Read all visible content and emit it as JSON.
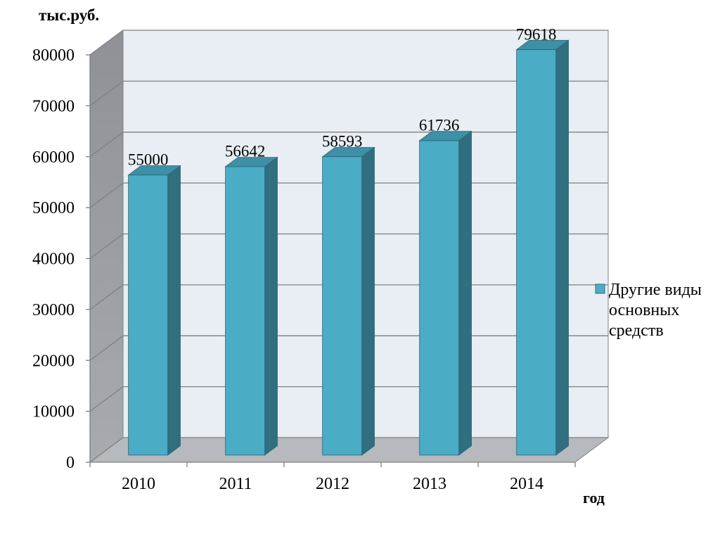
{
  "chart_data": {
    "type": "bar",
    "3d": true,
    "ylabel": "тыс.руб.",
    "xlabel": "год",
    "categories": [
      "2010",
      "2011",
      "2012",
      "2013",
      "2014"
    ],
    "series": [
      {
        "name": "Другие виды основных средств",
        "values": [
          55000,
          56642,
          58593,
          61736,
          79618
        ]
      }
    ],
    "ylim": [
      0,
      80000
    ],
    "yticks": [
      0,
      10000,
      20000,
      30000,
      40000,
      50000,
      60000,
      70000,
      80000
    ],
    "grid": true,
    "legend": "right",
    "data_labels": true
  },
  "colors": {
    "bar_front": "#4BACC6",
    "bar_top": "#3D90A6",
    "bar_side": "#2F6F80",
    "bar_edge": "#2B6474",
    "back_wall": "#E8EEF4",
    "side_wall_top": "#8E9296",
    "side_wall_bottom": "#A7ABAF",
    "floor": "#B6BABE",
    "gridline": "#808080"
  }
}
